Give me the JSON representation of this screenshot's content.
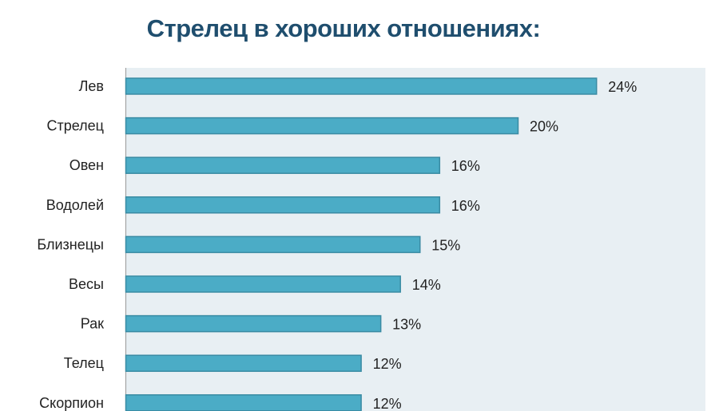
{
  "chart_data": {
    "type": "bar",
    "orientation": "horizontal",
    "title": "Стрелец в хороших отношениях:",
    "categories": [
      "Лев",
      "Стрелец",
      "Овен",
      "Водолей",
      "Близнецы",
      "Весы",
      "Рак",
      "Телец",
      "Скорпион"
    ],
    "values": [
      24,
      20,
      16,
      16,
      15,
      14,
      13,
      12,
      12
    ],
    "value_labels": [
      "24%",
      "20%",
      "16%",
      "16%",
      "15%",
      "14%",
      "13%",
      "12%",
      "12%"
    ],
    "xlabel": "",
    "ylabel": "",
    "xlim": [
      0,
      29.5
    ],
    "grid": false,
    "bar_color": "#4bacc6",
    "bar_border_color": "#3a8ba3"
  }
}
